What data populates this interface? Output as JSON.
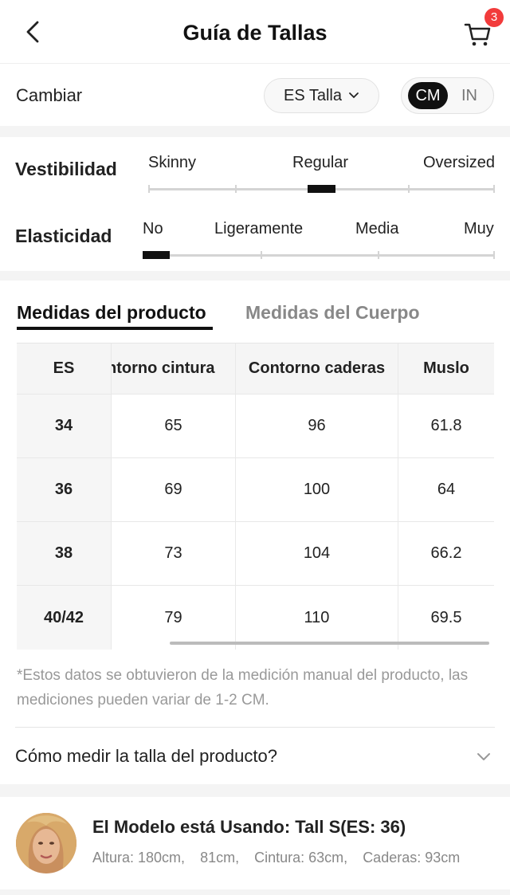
{
  "header": {
    "title": "Guía de Tallas",
    "cart_count": "3"
  },
  "settings": {
    "change_label": "Cambiar",
    "size_system": "ES Talla",
    "units": [
      "CM",
      "IN"
    ],
    "selected_unit": "CM"
  },
  "fit": {
    "label": "Vestibilidad",
    "options": [
      "Skinny",
      "Regular",
      "Oversized"
    ],
    "selected": "Regular"
  },
  "elasticity": {
    "label": "Elasticidad",
    "options": [
      "No",
      "Ligeramente",
      "Media",
      "Muy"
    ],
    "selected": "No"
  },
  "tabs": {
    "active": "Medidas del producto",
    "inactive": "Medidas del Cuerpo"
  },
  "table": {
    "headers": [
      "ES",
      "ntorno cintura",
      "Contorno caderas",
      "Muslo"
    ],
    "rows": [
      [
        "34",
        "65",
        "96",
        "61.8"
      ],
      [
        "36",
        "69",
        "100",
        "64"
      ],
      [
        "38",
        "73",
        "104",
        "66.2"
      ],
      [
        "40/42",
        "79",
        "110",
        "69.5"
      ]
    ]
  },
  "note": "*Estos datos se obtuvieron de la medición manual del producto, las mediciones pueden variar de 1-2 CM.",
  "how_to": "Cómo medir la talla del producto?",
  "model": {
    "title": "El Modelo está Usando: Tall S(ES: 36)",
    "stats": [
      "Altura: 180cm,",
      "81cm,",
      "Cintura: 63cm,",
      "Caderas: 93cm"
    ]
  },
  "colors": {
    "accent": "#111111",
    "badge": "#f23b3b",
    "muted": "#999999"
  },
  "icons": {
    "back": "chevron-left-icon",
    "cart": "cart-icon",
    "dropdown": "chevron-down-icon"
  }
}
